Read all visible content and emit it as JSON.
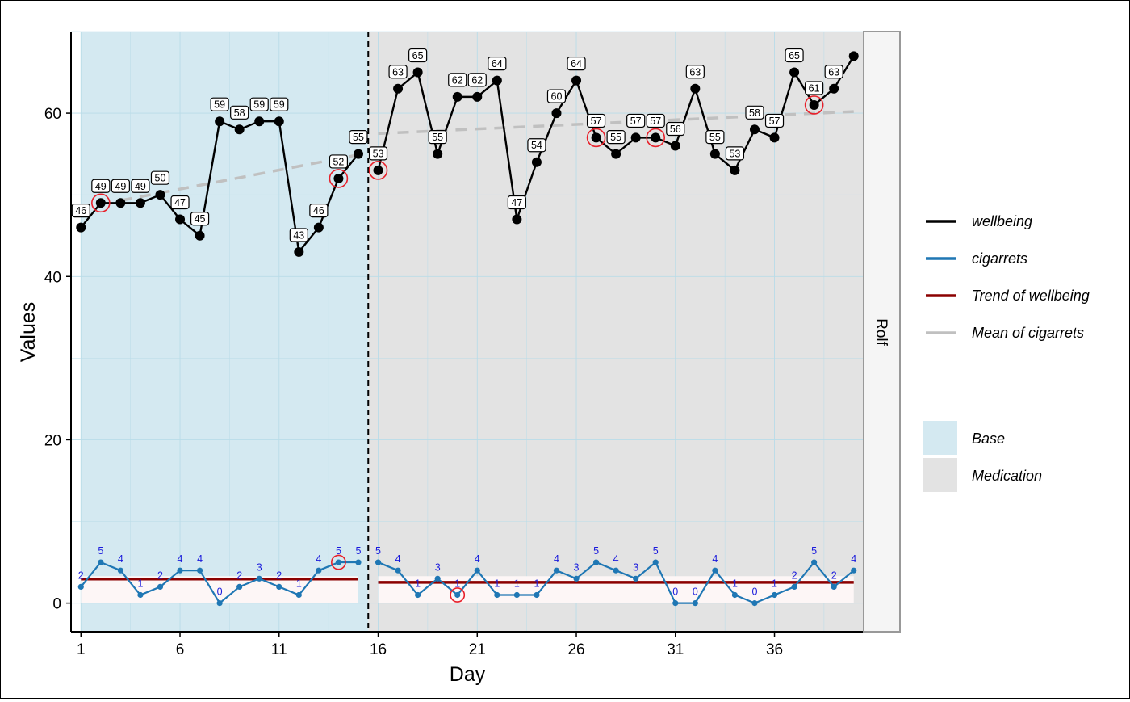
{
  "chart_data": {
    "type": "line",
    "xlabel": "Day",
    "ylabel": "Values",
    "xlim": [
      0.5,
      40.5
    ],
    "ylim": [
      -3.5,
      70
    ],
    "x_ticks": [
      1,
      6,
      11,
      16,
      21,
      26,
      31,
      36
    ],
    "y_ticks": [
      0,
      20,
      40,
      60
    ],
    "facet_label": "Rolf",
    "phases": [
      {
        "name": "Base",
        "start": 1,
        "end": 15,
        "color": "#d4e9f1"
      },
      {
        "name": "Medication",
        "start": 16,
        "end": 40,
        "color": "#e3e3e3"
      }
    ],
    "phase_change_at": 15.5,
    "series": [
      {
        "name": "wellbeing",
        "color": "#000000",
        "x": [
          1,
          2,
          3,
          4,
          5,
          6,
          7,
          8,
          9,
          10,
          11,
          12,
          13,
          14,
          15,
          16,
          17,
          18,
          19,
          20,
          21,
          22,
          23,
          24,
          25,
          26,
          27,
          28,
          29,
          30,
          31,
          32,
          33,
          34,
          35,
          36,
          37,
          38,
          39,
          40
        ],
        "values": [
          46,
          49,
          49,
          49,
          50,
          47,
          45,
          59,
          58,
          59,
          59,
          43,
          46,
          52,
          55,
          53,
          63,
          65,
          55,
          62,
          62,
          64,
          47,
          54,
          60,
          64,
          57,
          55,
          57,
          57,
          56,
          63,
          55,
          53,
          58,
          57,
          65,
          61,
          63,
          67
        ],
        "labels": [
          "46",
          "49",
          "49",
          "49",
          "50",
          "47",
          "45",
          "59",
          "58",
          "59",
          "59",
          "43",
          "46",
          "52",
          "55",
          "53",
          "63",
          "65",
          "55",
          "62",
          "62",
          "64",
          "47",
          "54",
          "60",
          "64",
          "57",
          "55",
          "57",
          "57",
          "56",
          "63",
          "55",
          "53",
          "58",
          "57",
          "65",
          "61",
          "63",
          ""
        ],
        "highlighted_x": [
          2,
          14,
          16,
          27,
          30,
          38
        ]
      },
      {
        "name": "cigarrets",
        "color": "#1f77b4",
        "x": [
          1,
          2,
          3,
          4,
          5,
          6,
          7,
          8,
          9,
          10,
          11,
          12,
          13,
          14,
          15,
          16,
          17,
          18,
          19,
          20,
          21,
          22,
          23,
          24,
          25,
          26,
          27,
          28,
          29,
          30,
          31,
          32,
          33,
          34,
          35,
          36,
          37,
          38,
          39,
          40
        ],
        "values": [
          2,
          5,
          4,
          1,
          2,
          4,
          4,
          0,
          2,
          3,
          2,
          1,
          4,
          5,
          5,
          5,
          4,
          1,
          3,
          1,
          4,
          1,
          1,
          1,
          4,
          3,
          5,
          4,
          3,
          5,
          0,
          0,
          4,
          1,
          0,
          1,
          2,
          5,
          2,
          4
        ],
        "labels": [
          "2",
          "5",
          "4",
          "1",
          "2",
          "4",
          "4",
          "0",
          "2",
          "3",
          "2",
          "1",
          "4",
          "5",
          "5",
          "5",
          "4",
          "1",
          "3",
          "1",
          "4",
          "1",
          "1",
          "1",
          "4",
          "3",
          "5",
          "4",
          "3",
          "5",
          "0",
          "0",
          "4",
          "1",
          "0",
          "1",
          "2",
          "5",
          "2",
          "4"
        ],
        "highlighted_x": [
          14,
          20
        ]
      },
      {
        "name": "Trend of wellbeing",
        "color": "#8b0000",
        "segments": [
          {
            "x": [
              1,
              15
            ],
            "values": [
              2.95,
              2.95
            ]
          },
          {
            "x": [
              16,
              40
            ],
            "values": [
              2.55,
              2.55
            ]
          }
        ]
      },
      {
        "name": "Mean of cigarrets",
        "color": "#c0c0c0",
        "segments": [
          {
            "x": [
              3,
              15
            ],
            "values": [
              49.3,
              54.9
            ]
          },
          {
            "x": [
              16,
              40
            ],
            "values": [
              57.5,
              60.2
            ]
          }
        ]
      }
    ],
    "legend": {
      "placement": "right",
      "lines": [
        "wellbeing",
        "cigarrets",
        "Trend of wellbeing",
        "Mean of cigarrets"
      ],
      "fills": [
        "Base",
        "Medication"
      ]
    }
  }
}
